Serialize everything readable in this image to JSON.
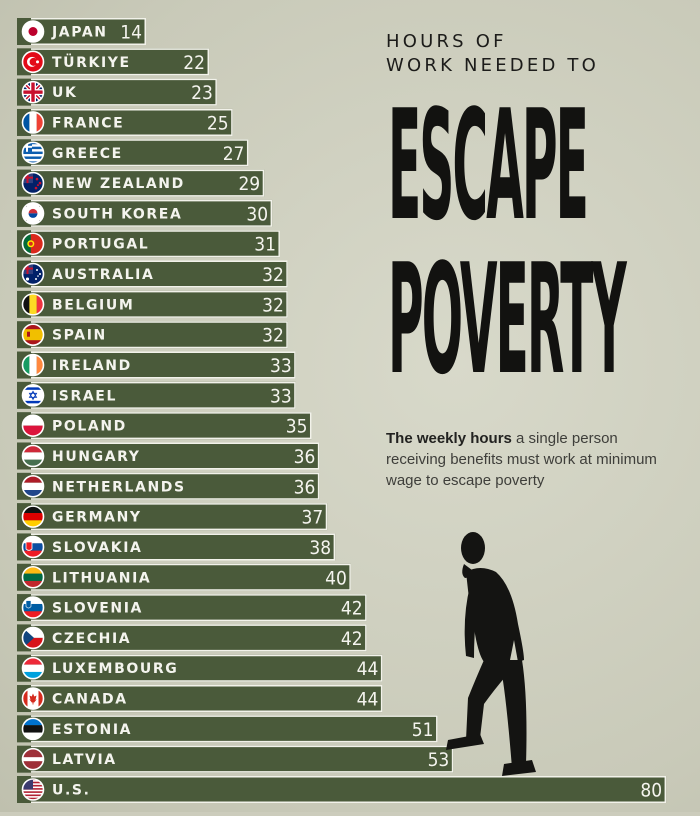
{
  "title": {
    "line1": "HOURS OF",
    "line2": "WORK NEEDED TO",
    "big1": "ESCAPE",
    "big2": "POVERTY"
  },
  "subtitle": {
    "bold": "The weekly hours",
    "rest": " a single person receiving benefits must work at minimum wage to escape poverty"
  },
  "colors": {
    "bar": "#4a5a3a",
    "background": "#ccccbc",
    "text_light": "#f4f4ee"
  },
  "chart_data": {
    "type": "bar",
    "orientation": "horizontal",
    "categories": [
      "JAPAN",
      "TÜRKIYE",
      "UK",
      "FRANCE",
      "GREECE",
      "NEW ZEALAND",
      "SOUTH KOREA",
      "PORTUGAL",
      "AUSTRALIA",
      "BELGIUM",
      "SPAIN",
      "IRELAND",
      "ISRAEL",
      "POLAND",
      "HUNGARY",
      "NETHERLANDS",
      "GERMANY",
      "SLOVAKIA",
      "LITHUANIA",
      "SLOVENIA",
      "CZECHIA",
      "LUXEMBOURG",
      "CANADA",
      "ESTONIA",
      "LATVIA",
      "U.S."
    ],
    "values": [
      14,
      22,
      23,
      25,
      27,
      29,
      30,
      31,
      32,
      32,
      32,
      33,
      33,
      35,
      36,
      36,
      37,
      38,
      40,
      42,
      42,
      44,
      44,
      51,
      53,
      80
    ],
    "flag_icons": [
      "japan-flag",
      "turkey-flag",
      "uk-flag",
      "france-flag",
      "greece-flag",
      "new-zealand-flag",
      "south-korea-flag",
      "portugal-flag",
      "australia-flag",
      "belgium-flag",
      "spain-flag",
      "ireland-flag",
      "israel-flag",
      "poland-flag",
      "hungary-flag",
      "netherlands-flag",
      "germany-flag",
      "slovakia-flag",
      "lithuania-flag",
      "slovenia-flag",
      "czechia-flag",
      "luxembourg-flag",
      "canada-flag",
      "estonia-flag",
      "latvia-flag",
      "us-flag"
    ],
    "grid": false,
    "legend": "none"
  }
}
